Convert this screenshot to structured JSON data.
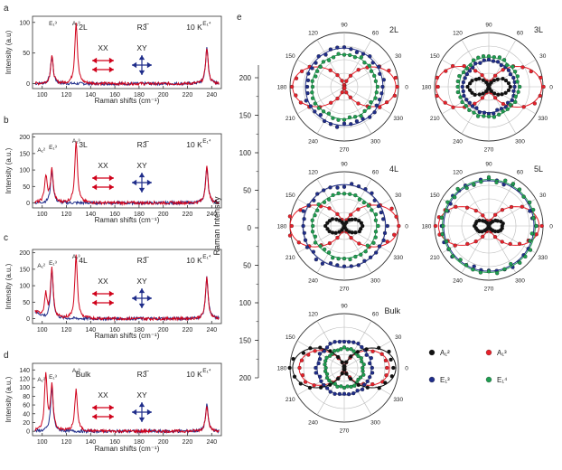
{
  "figure": {
    "panel_labels": [
      "a",
      "b",
      "c",
      "d",
      "e"
    ],
    "arrow_xx": "XX",
    "arrow_xy": "XY",
    "colors": {
      "xx": "#d0021b",
      "xy": "#1f2d8a",
      "a2": "#111111",
      "a3": "#e8202a",
      "e3": "#1f2d8a",
      "e4": "#1e9e50"
    }
  },
  "chart_data": [
    {
      "type": "line",
      "panel": "a",
      "layer": "2L",
      "symmetry": "R3̅",
      "temperature": "10 K",
      "xlabel": "Raman shifts (cm⁻¹)",
      "ylabel": "Intensity (a.u)",
      "xlim": [
        92,
        248
      ],
      "ylim": [
        -8,
        110
      ],
      "xticks": [
        "100",
        "120",
        "140",
        "160",
        "180",
        "200",
        "220",
        "240"
      ],
      "yticks": [
        "0",
        "50",
        "100"
      ],
      "peak_labels": [
        {
          "text": "E₁³",
          "x": 108
        },
        {
          "text": "A₁³",
          "x": 128
        },
        {
          "text": "E₁⁴",
          "x": 236
        }
      ],
      "series": [
        {
          "name": "XX",
          "peaks": [
            [
              108,
              45
            ],
            [
              128,
              100
            ],
            [
              236,
              58
            ]
          ]
        },
        {
          "name": "XY",
          "peaks": [
            [
              108,
              45
            ],
            [
              236,
              58
            ]
          ]
        }
      ]
    },
    {
      "type": "line",
      "panel": "b",
      "layer": "3L",
      "symmetry": "R3̅",
      "temperature": "10 K",
      "xlabel": "Raman shifts (cm⁻¹)",
      "ylabel": "Intensity (a.u.)",
      "xlim": [
        92,
        248
      ],
      "ylim": [
        -15,
        210
      ],
      "xticks": [
        "100",
        "120",
        "140",
        "160",
        "180",
        "200",
        "220",
        "240"
      ],
      "yticks": [
        "0",
        "50",
        "100",
        "150",
        "200"
      ],
      "peak_labels": [
        {
          "text": "A₁²",
          "x": 103
        },
        {
          "text": "E₁³",
          "x": 108
        },
        {
          "text": "A₁³",
          "x": 128
        },
        {
          "text": "E₁⁴",
          "x": 236
        }
      ],
      "series": [
        {
          "name": "XX",
          "peaks": [
            [
              103,
              80
            ],
            [
              108,
              100
            ],
            [
              128,
              190
            ],
            [
              236,
              110
            ]
          ]
        },
        {
          "name": "XY",
          "peaks": [
            [
              108,
              100
            ],
            [
              236,
              110
            ]
          ]
        }
      ]
    },
    {
      "type": "line",
      "panel": "c",
      "layer": "4L",
      "symmetry": "R3̅",
      "temperature": "10 K",
      "xlabel": "Raman shifts (cm⁻¹)",
      "ylabel": "Intensity (a.u.)",
      "xlim": [
        92,
        248
      ],
      "ylim": [
        -15,
        210
      ],
      "xticks": [
        "100",
        "120",
        "140",
        "160",
        "180",
        "200",
        "220",
        "240"
      ],
      "yticks": [
        "0",
        "50",
        "100",
        "150",
        "200"
      ],
      "peak_labels": [
        {
          "text": "A₁²",
          "x": 103
        },
        {
          "text": "E₁³",
          "x": 108
        },
        {
          "text": "A₁³",
          "x": 128
        },
        {
          "text": "E₁⁴",
          "x": 236
        }
      ],
      "series": [
        {
          "name": "XX",
          "peaks": [
            [
              103,
              70
            ],
            [
              108,
              150
            ],
            [
              128,
              190
            ],
            [
              236,
              125
            ]
          ]
        },
        {
          "name": "XY",
          "peaks": [
            [
              108,
              150
            ],
            [
              236,
              125
            ]
          ]
        }
      ]
    },
    {
      "type": "line",
      "panel": "d",
      "layer": "Bulk",
      "symmetry": "R3̅",
      "temperature": "10 K",
      "xlabel": "Raman shifts (cm⁻¹)",
      "ylabel": "Intensity (a.u.)",
      "xlim": [
        92,
        248
      ],
      "ylim": [
        -10,
        155
      ],
      "xticks": [
        "100",
        "120",
        "140",
        "160",
        "180",
        "200",
        "220",
        "240"
      ],
      "yticks": [
        "0",
        "20",
        "40",
        "60",
        "80",
        "100",
        "120",
        "140"
      ],
      "peak_labels": [
        {
          "text": "A₁²",
          "x": 103
        },
        {
          "text": "E₁³",
          "x": 108
        },
        {
          "text": "A₁³",
          "x": 128
        },
        {
          "text": "E₁⁴",
          "x": 236
        }
      ],
      "series": [
        {
          "name": "XX",
          "peaks": [
            [
              103,
              130
            ],
            [
              108,
              100
            ],
            [
              128,
              95
            ],
            [
              236,
              60
            ]
          ]
        },
        {
          "name": "XY",
          "peaks": [
            [
              108,
              100
            ],
            [
              236,
              60
            ]
          ]
        }
      ]
    },
    {
      "type": "scatter",
      "panel": "e",
      "subtype": "polar",
      "ylabel": "Raman Intensity",
      "radial_ticks": [
        "200",
        "150",
        "100",
        "50",
        "0",
        "50",
        "100",
        "150",
        "200"
      ],
      "rmax": 210,
      "angle_labels": [
        "0",
        "30",
        "60",
        "90",
        "120",
        "150",
        "180",
        "210",
        "240",
        "270",
        "300",
        "330"
      ],
      "legend": [
        {
          "label": "A₁²",
          "key": "a2"
        },
        {
          "label": "A₁³",
          "key": "a3"
        },
        {
          "label": "E₁³",
          "key": "e3"
        },
        {
          "label": "E₁⁴",
          "key": "e4"
        }
      ],
      "plots": [
        {
          "label": "2L",
          "modes": {
            "a3": {
              "shape": "dipole",
              "amp": 200
            },
            "e3": {
              "shape": "circle",
              "amp": 150
            },
            "e4": {
              "shape": "circle",
              "amp": 125
            }
          }
        },
        {
          "label": "3L",
          "modes": {
            "a2": {
              "shape": "dipole",
              "amp": 80
            },
            "a3": {
              "shape": "dipole",
              "amp": 205
            },
            "e3": {
              "shape": "circle",
              "amp": 100
            },
            "e4": {
              "shape": "circle",
              "amp": 115
            }
          }
        },
        {
          "label": "4L",
          "modes": {
            "a2": {
              "shape": "dipole",
              "amp": 70
            },
            "a3": {
              "shape": "dipole",
              "amp": 210
            },
            "e3": {
              "shape": "circle",
              "amp": 160
            },
            "e4": {
              "shape": "circle",
              "amp": 125
            }
          }
        },
        {
          "label": "5L",
          "modes": {
            "a2": {
              "shape": "dipole",
              "amp": 55
            },
            "a3": {
              "shape": "dipole",
              "amp": 195
            },
            "e3": {
              "shape": "circle",
              "amp": 175
            },
            "e4": {
              "shape": "circle",
              "amp": 180
            }
          }
        },
        {
          "label": "Bulk",
          "modes": {
            "a2": {
              "shape": "dipole",
              "amp": 200
            },
            "a3": {
              "shape": "dipole",
              "amp": 175
            },
            "e3": {
              "shape": "circle",
              "amp": 105
            },
            "e4": {
              "shape": "circle",
              "amp": 75
            }
          }
        }
      ]
    }
  ]
}
